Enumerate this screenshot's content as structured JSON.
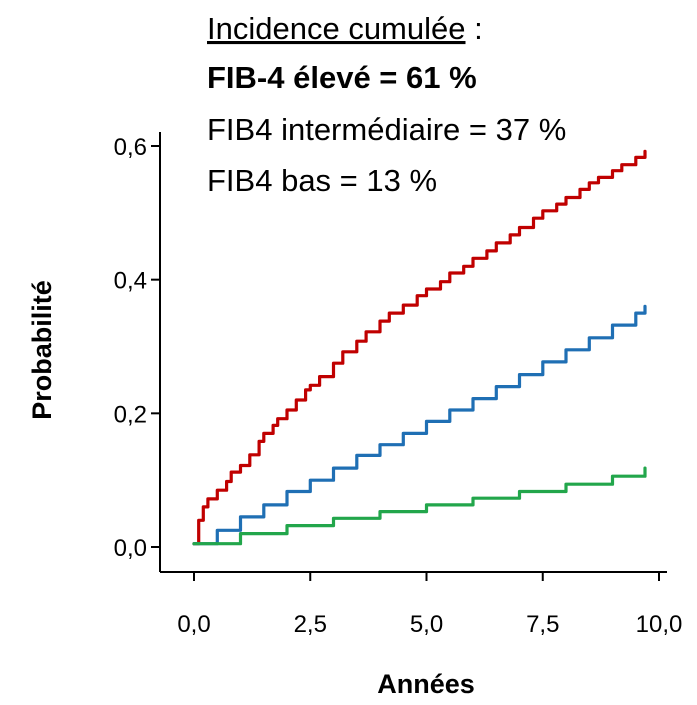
{
  "chart_data": {
    "type": "line",
    "xlabel": "Années",
    "ylabel": "Probabilité",
    "xlim": [
      0,
      10
    ],
    "ylim": [
      0,
      0.6
    ],
    "x_ticks": [
      0,
      2.5,
      5,
      7.5,
      10
    ],
    "x_tick_labels": [
      "0,0",
      "2,5",
      "5,0",
      "7,5",
      "10,0"
    ],
    "y_ticks": [
      0,
      0.2,
      0.4,
      0.6
    ],
    "y_tick_labels": [
      "0,0",
      "0,2",
      "0,4",
      "0,6"
    ],
    "grid": false,
    "annotations": {
      "heading": "Incidence cumulée",
      "heading_suffix": " :",
      "lines": [
        {
          "text": "FIB-4 élevé = 61 %",
          "bold": true
        },
        {
          "text": "FIB4 intermédiaire = 37 %",
          "bold": false
        },
        {
          "text": "FIB4 bas = 13 %",
          "bold": false
        }
      ]
    },
    "series": [
      {
        "color": "#C00000",
        "x": [
          0,
          0.1,
          0.2,
          0.3,
          0.5,
          0.7,
          0.8,
          1.0,
          1.2,
          1.4,
          1.5,
          1.7,
          1.8,
          2.0,
          2.2,
          2.4,
          2.5,
          2.7,
          3.0,
          3.2,
          3.5,
          3.7,
          4.0,
          4.2,
          4.5,
          4.8,
          5.0,
          5.3,
          5.5,
          5.8,
          6.0,
          6.3,
          6.5,
          6.8,
          7.0,
          7.3,
          7.5,
          7.8,
          8.0,
          8.3,
          8.5,
          8.7,
          9.0,
          9.2,
          9.5,
          9.7
        ],
        "values": [
          0.005,
          0.04,
          0.06,
          0.072,
          0.085,
          0.098,
          0.112,
          0.122,
          0.138,
          0.158,
          0.17,
          0.182,
          0.192,
          0.205,
          0.22,
          0.235,
          0.242,
          0.255,
          0.275,
          0.292,
          0.308,
          0.322,
          0.338,
          0.35,
          0.362,
          0.376,
          0.386,
          0.397,
          0.41,
          0.42,
          0.432,
          0.443,
          0.455,
          0.467,
          0.478,
          0.492,
          0.503,
          0.513,
          0.523,
          0.535,
          0.545,
          0.553,
          0.563,
          0.572,
          0.583,
          0.592
        ]
      },
      {
        "color": "#1F6FB4",
        "x": [
          0,
          0.5,
          1.0,
          1.5,
          2.0,
          2.5,
          3.0,
          3.5,
          4.0,
          4.5,
          5.0,
          5.5,
          6.0,
          6.5,
          7.0,
          7.5,
          8.0,
          8.5,
          9.0,
          9.5,
          9.7
        ],
        "values": [
          0.005,
          0.025,
          0.045,
          0.063,
          0.083,
          0.1,
          0.118,
          0.137,
          0.153,
          0.17,
          0.188,
          0.205,
          0.222,
          0.24,
          0.258,
          0.277,
          0.295,
          0.313,
          0.332,
          0.35,
          0.36
        ]
      },
      {
        "color": "#22A64B",
        "x": [
          0,
          1.0,
          2.0,
          3.0,
          4.0,
          5.0,
          6.0,
          7.0,
          8.0,
          9.0,
          9.7
        ],
        "values": [
          0.005,
          0.02,
          0.032,
          0.043,
          0.053,
          0.063,
          0.073,
          0.083,
          0.094,
          0.106,
          0.118
        ]
      }
    ]
  }
}
